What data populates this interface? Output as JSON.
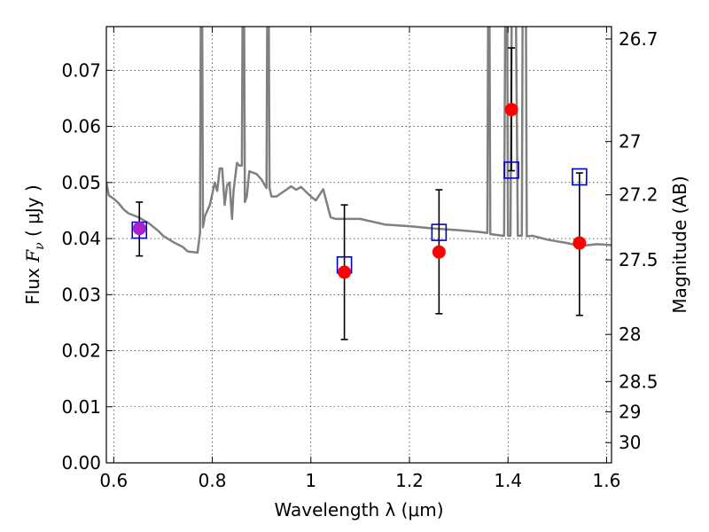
{
  "chart_data": {
    "type": "scatter",
    "xlabel": "Wavelength  λ (μm)",
    "ylabel_left": {
      "prefix": "Flux ",
      "symbol": "F",
      "subscript": "ν",
      "unit": " ( μJy )"
    },
    "ylabel_right": "Magnitude (AB)",
    "xlim": [
      0.585,
      1.61
    ],
    "ylim": [
      0.0,
      0.0778
    ],
    "x_ticks": [
      {
        "value": 0.6,
        "label": "0.6"
      },
      {
        "value": 0.8,
        "label": "0.8"
      },
      {
        "value": 1.0,
        "label": "1"
      },
      {
        "value": 1.2,
        "label": "1.2"
      },
      {
        "value": 1.4,
        "label": "1.4"
      },
      {
        "value": 1.6,
        "label": "1.6"
      }
    ],
    "y_ticks": [
      {
        "value": 0.0,
        "label": "0.00"
      },
      {
        "value": 0.01,
        "label": "0.01"
      },
      {
        "value": 0.02,
        "label": "0.02"
      },
      {
        "value": 0.03,
        "label": "0.03"
      },
      {
        "value": 0.04,
        "label": "0.04"
      },
      {
        "value": 0.05,
        "label": "0.05"
      },
      {
        "value": 0.06,
        "label": "0.06"
      },
      {
        "value": 0.07,
        "label": "0.07"
      }
    ],
    "mag_ticks": [
      {
        "value": 0.0756,
        "label": "26.7"
      },
      {
        "value": 0.0573,
        "label": "27"
      },
      {
        "value": 0.0478,
        "label": "27.2"
      },
      {
        "value": 0.0362,
        "label": "27.5"
      },
      {
        "value": 0.0229,
        "label": "28"
      },
      {
        "value": 0.0145,
        "label": "28.5"
      },
      {
        "value": 0.0091,
        "label": "29"
      },
      {
        "value": 0.0036,
        "label": "30"
      }
    ],
    "grid": true,
    "model_color": "#808080",
    "observed_color": "#ff0000",
    "model_phot_color": "#0000cc",
    "highlight_color": "#aa22cc",
    "model_spectrum": [
      [
        0.585,
        0.05
      ],
      [
        0.59,
        0.0477
      ],
      [
        0.6,
        0.0471
      ],
      [
        0.61,
        0.0463
      ],
      [
        0.62,
        0.0452
      ],
      [
        0.63,
        0.0445
      ],
      [
        0.65,
        0.0438
      ],
      [
        0.67,
        0.0428
      ],
      [
        0.69,
        0.0414
      ],
      [
        0.7,
        0.0405
      ],
      [
        0.72,
        0.0394
      ],
      [
        0.74,
        0.0385
      ],
      [
        0.75,
        0.0377
      ],
      [
        0.77,
        0.0375
      ],
      [
        0.775,
        0.041
      ],
      [
        0.777,
        0.09
      ],
      [
        0.779,
        0.09
      ],
      [
        0.781,
        0.042
      ],
      [
        0.785,
        0.044
      ],
      [
        0.795,
        0.046
      ],
      [
        0.8,
        0.048
      ],
      [
        0.805,
        0.05
      ],
      [
        0.81,
        0.0485
      ],
      [
        0.815,
        0.0525
      ],
      [
        0.82,
        0.0525
      ],
      [
        0.825,
        0.046
      ],
      [
        0.83,
        0.0495
      ],
      [
        0.835,
        0.05
      ],
      [
        0.84,
        0.0435
      ],
      [
        0.843,
        0.0485
      ],
      [
        0.85,
        0.0535
      ],
      [
        0.855,
        0.053
      ],
      [
        0.86,
        0.053
      ],
      [
        0.862,
        0.09
      ],
      [
        0.864,
        0.09
      ],
      [
        0.866,
        0.0465
      ],
      [
        0.87,
        0.0475
      ],
      [
        0.875,
        0.052
      ],
      [
        0.89,
        0.0515
      ],
      [
        0.9,
        0.0505
      ],
      [
        0.91,
        0.049
      ],
      [
        0.912,
        0.09
      ],
      [
        0.914,
        0.09
      ],
      [
        0.916,
        0.049
      ],
      [
        0.92,
        0.0475
      ],
      [
        0.93,
        0.0475
      ],
      [
        0.95,
        0.0487
      ],
      [
        0.96,
        0.0493
      ],
      [
        0.97,
        0.0487
      ],
      [
        0.98,
        0.0492
      ],
      [
        1.0,
        0.0475
      ],
      [
        1.01,
        0.0468
      ],
      [
        1.025,
        0.0488
      ],
      [
        1.04,
        0.0438
      ],
      [
        1.05,
        0.0435
      ],
      [
        1.1,
        0.0435
      ],
      [
        1.15,
        0.0425
      ],
      [
        1.2,
        0.0422
      ],
      [
        1.25,
        0.0418
      ],
      [
        1.3,
        0.0415
      ],
      [
        1.34,
        0.0412
      ],
      [
        1.358,
        0.041
      ],
      [
        1.36,
        0.09
      ],
      [
        1.362,
        0.09
      ],
      [
        1.364,
        0.0408
      ],
      [
        1.39,
        0.0405
      ],
      [
        1.392,
        0.0405
      ],
      [
        1.395,
        0.09
      ],
      [
        1.398,
        0.09
      ],
      [
        1.4,
        0.0405
      ],
      [
        1.405,
        0.0405
      ],
      [
        1.408,
        0.09
      ],
      [
        1.415,
        0.09
      ],
      [
        1.42,
        0.0405
      ],
      [
        1.428,
        0.0405
      ],
      [
        1.43,
        0.09
      ],
      [
        1.436,
        0.09
      ],
      [
        1.438,
        0.0404
      ],
      [
        1.45,
        0.0405
      ],
      [
        1.48,
        0.0398
      ],
      [
        1.5,
        0.0395
      ],
      [
        1.52,
        0.0392
      ],
      [
        1.54,
        0.0388
      ],
      [
        1.56,
        0.0388
      ],
      [
        1.58,
        0.039
      ],
      [
        1.6,
        0.0389
      ],
      [
        1.61,
        0.0388
      ]
    ],
    "observed": [
      {
        "x": 0.652,
        "y": 0.0418,
        "yerr_low": 0.0369,
        "yerr_high": 0.0465
      },
      {
        "x": 1.068,
        "y": 0.034,
        "yerr_low": 0.022,
        "yerr_high": 0.046
      },
      {
        "x": 1.26,
        "y": 0.0376,
        "yerr_low": 0.0266,
        "yerr_high": 0.0487
      },
      {
        "x": 1.407,
        "y": 0.063,
        "yerr_low": 0.0521,
        "yerr_high": 0.074
      },
      {
        "x": 1.545,
        "y": 0.0392,
        "yerr_low": 0.0263,
        "yerr_high": 0.0517
      }
    ],
    "model_photometry": [
      {
        "x": 0.652,
        "y": 0.0415
      },
      {
        "x": 1.068,
        "y": 0.0353
      },
      {
        "x": 1.26,
        "y": 0.0411
      },
      {
        "x": 1.407,
        "y": 0.0522
      },
      {
        "x": 1.545,
        "y": 0.051
      }
    ]
  }
}
